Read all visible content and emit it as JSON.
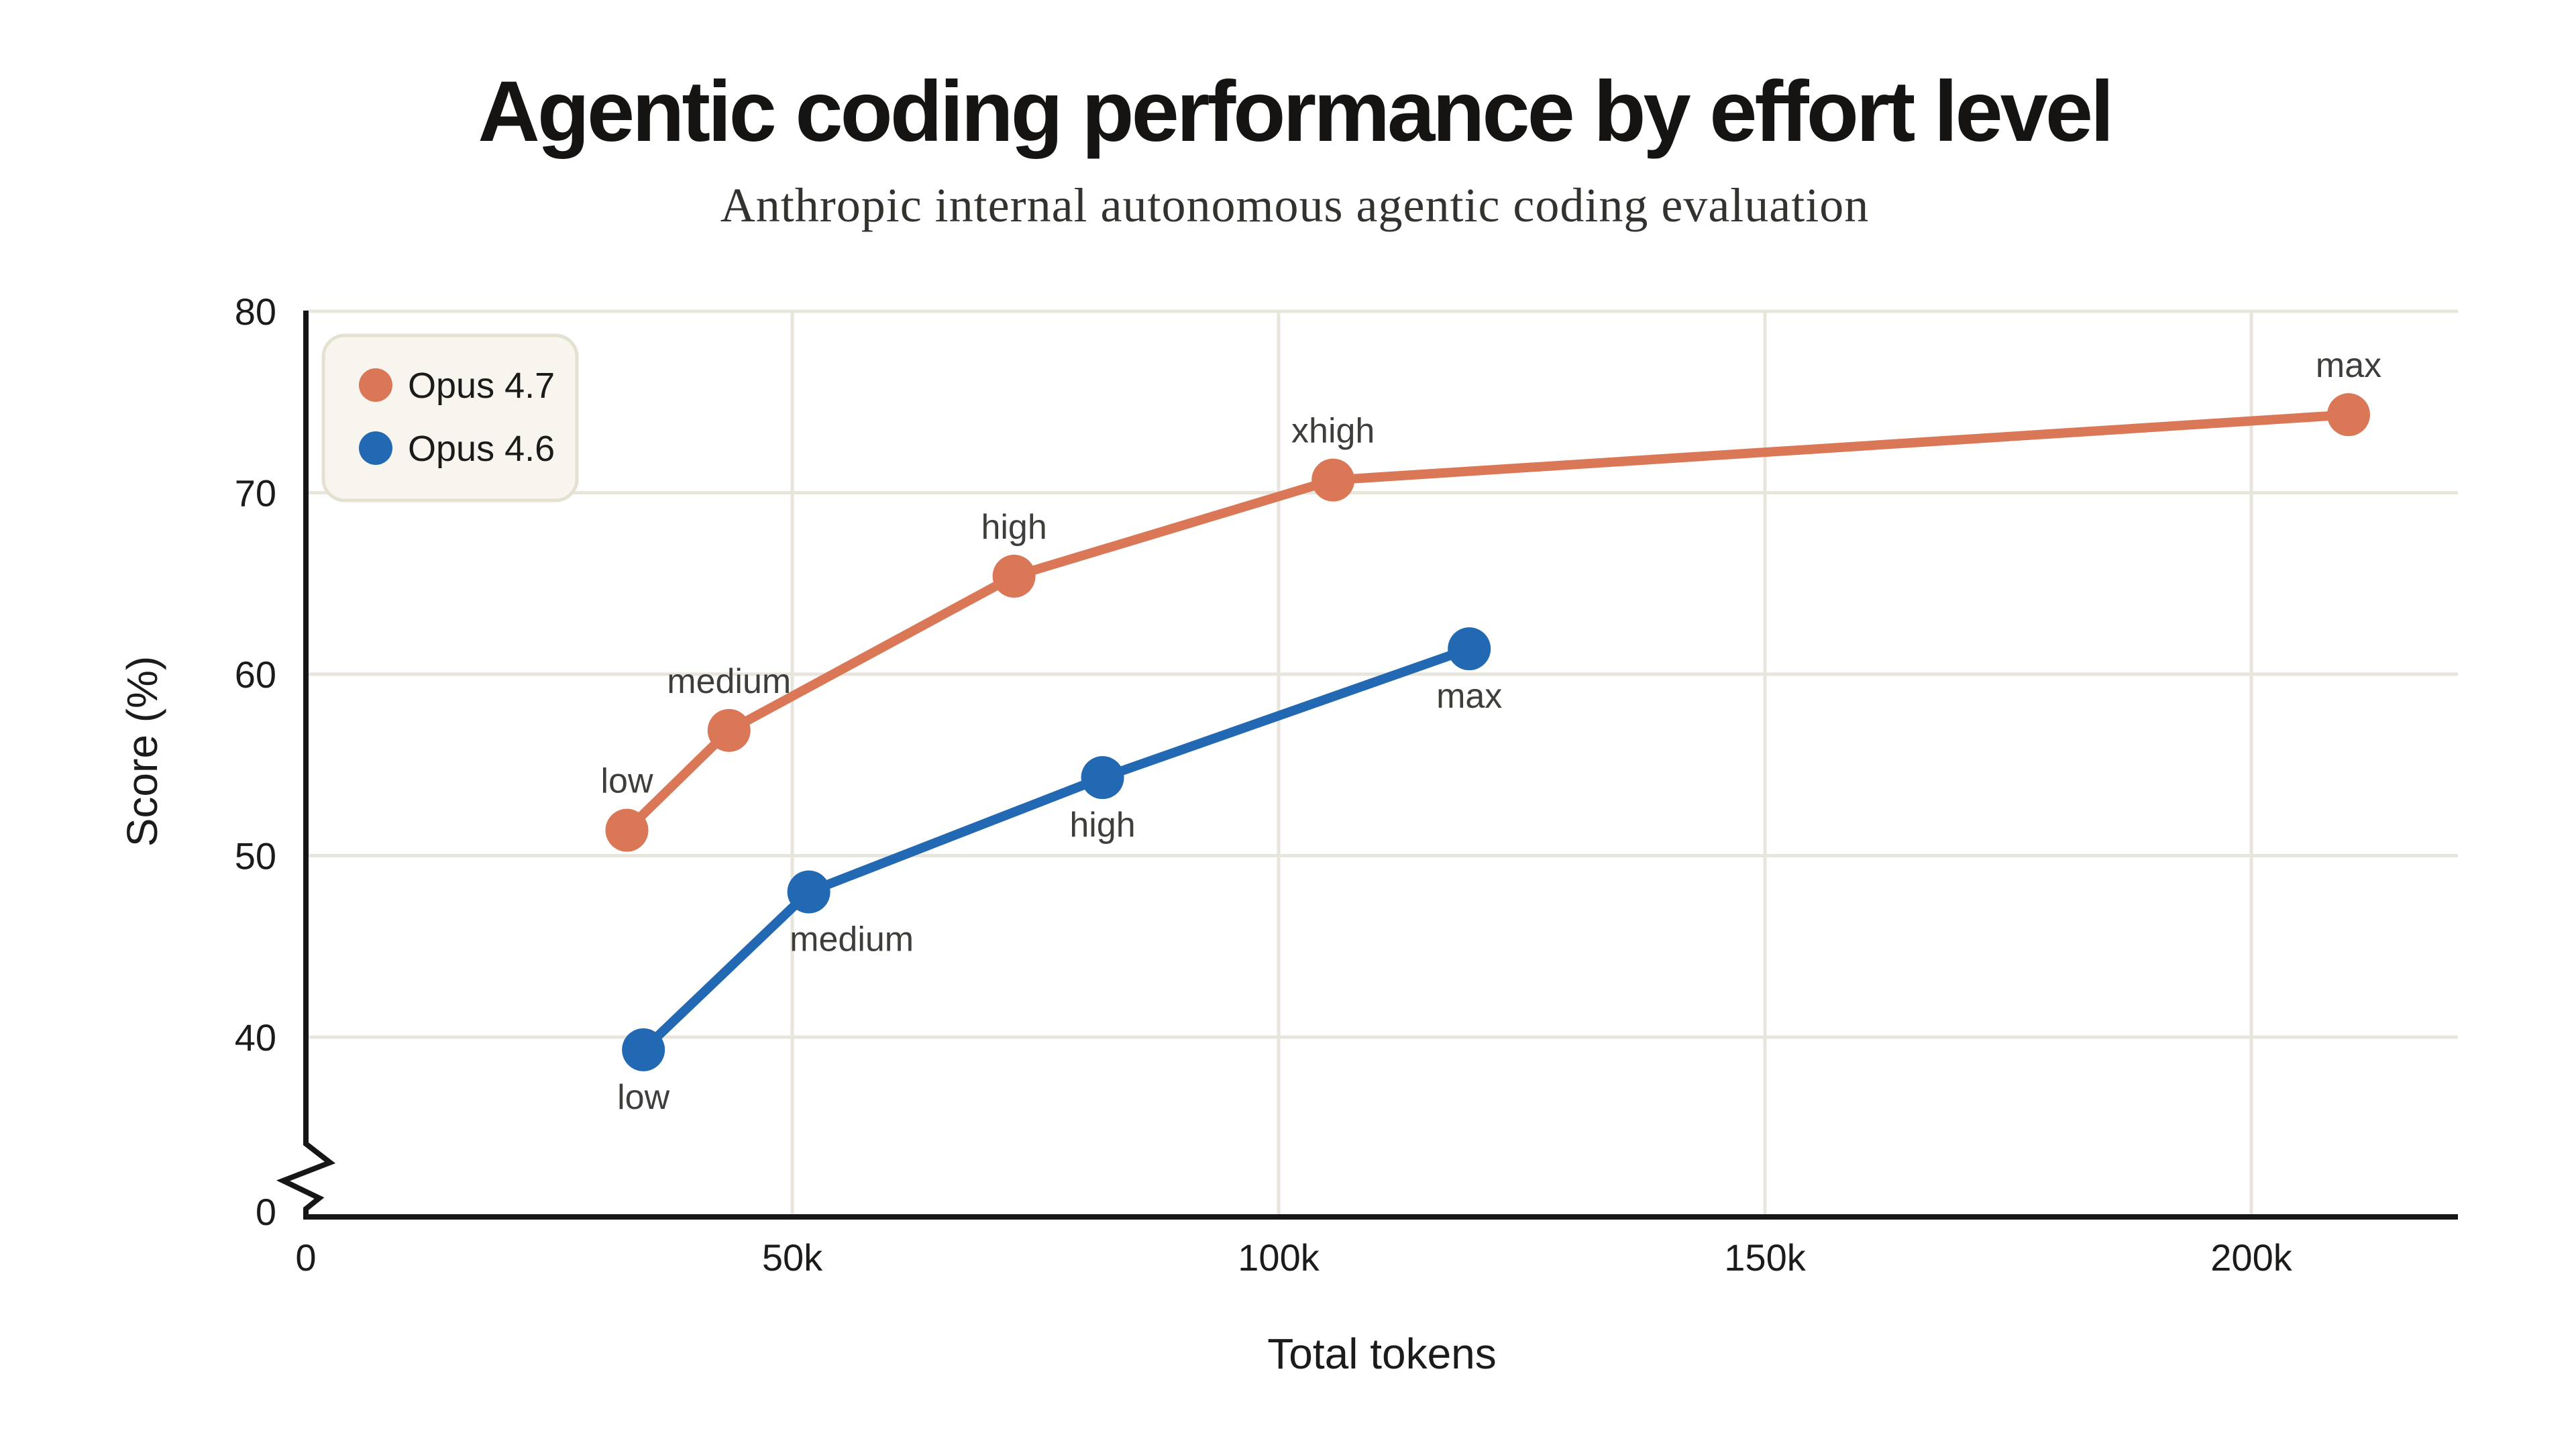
{
  "colors": {
    "background": "#ffffff",
    "grid": "#e8e5dc",
    "axis": "#161616",
    "title_text": "#151413",
    "subtitle_text": "#33322e",
    "point_label_text": "#3f3e3b",
    "legend_bg": "#f7f5ee",
    "legend_border": "#e4e0d2",
    "opus47": "#d97757",
    "opus46": "#2268b2"
  },
  "chart_data": {
    "type": "line",
    "title": "Agentic coding performance by effort level",
    "subtitle": "Anthropic internal autonomous agentic coding evaluation",
    "xlabel": "Total tokens",
    "ylabel": "Score (%)",
    "grid": true,
    "legend_position": "top-left",
    "x_ticks": [
      {
        "value": 0,
        "label": "0"
      },
      {
        "value": 50000,
        "label": "50k"
      },
      {
        "value": 100000,
        "label": "100k"
      },
      {
        "value": 150000,
        "label": "150k"
      },
      {
        "value": 200000,
        "label": "200k"
      }
    ],
    "y_ticks": [
      {
        "value": 0,
        "label": "0"
      },
      {
        "value": 40,
        "label": "40"
      },
      {
        "value": 50,
        "label": "50"
      },
      {
        "value": 60,
        "label": "60"
      },
      {
        "value": 70,
        "label": "70"
      },
      {
        "value": 80,
        "label": "80"
      }
    ],
    "y_axis_break": {
      "between": [
        0,
        40
      ],
      "symbol": "zigzag"
    },
    "xlim_tokens": [
      0,
      221000
    ],
    "ylim_displayed": [
      40,
      80
    ],
    "series": [
      {
        "name": "Opus 4.7",
        "color": "#d97757",
        "label_side": "above",
        "points": [
          {
            "tokens_k": 33,
            "score": 51.4,
            "label": "low"
          },
          {
            "tokens_k": 43.5,
            "score": 56.9,
            "label": "medium"
          },
          {
            "tokens_k": 72.8,
            "score": 65.4,
            "label": "high"
          },
          {
            "tokens_k": 105.6,
            "score": 70.7,
            "label": "xhigh"
          },
          {
            "tokens_k": 210,
            "score": 74.3,
            "label": "max"
          }
        ]
      },
      {
        "name": "Opus 4.6",
        "color": "#2268b2",
        "label_side": "below",
        "points": [
          {
            "tokens_k": 34.7,
            "score": 39.3,
            "label": "low"
          },
          {
            "tokens_k": 51.7,
            "score": 48.0,
            "label": "medium",
            "label_dx": 32
          },
          {
            "tokens_k": 81.9,
            "score": 54.3,
            "label": "high"
          },
          {
            "tokens_k": 119.6,
            "score": 61.4,
            "label": "max"
          }
        ]
      }
    ]
  }
}
